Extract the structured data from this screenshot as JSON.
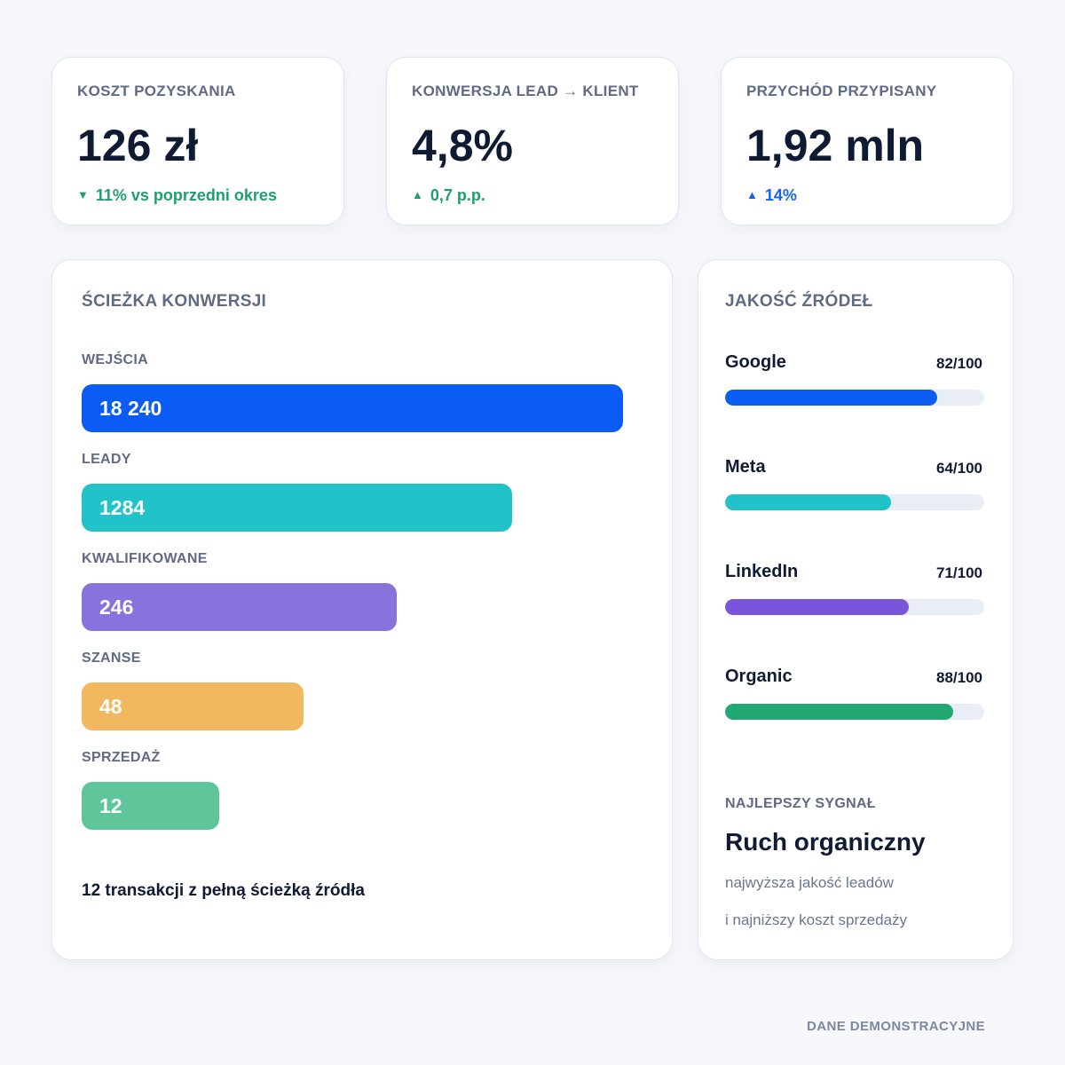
{
  "kpis": [
    {
      "label": "KOSZT POZYSKANIA",
      "value": "126 zł",
      "delta_arrow": "▼",
      "delta": "11% vs poprzedni okres",
      "delta_color": "#1f9e6e"
    },
    {
      "label": "KONWERSJA LEAD → KLIENT",
      "value": "4,8%",
      "delta_arrow": "▲",
      "delta": "0,7 p.p.",
      "delta_color": "#1f9e6e"
    },
    {
      "label": "PRZYCHÓD PRZYPISANY",
      "value": "1,92 mln",
      "delta_arrow": "▲",
      "delta": "14%",
      "delta_color": "#1663f0"
    }
  ],
  "funnel": {
    "title": "ŚCIEŻKA KONWERSJI",
    "stages": [
      {
        "label": "WEJŚCIA",
        "value": "18 240",
        "fill_fraction": 1.0,
        "color": "#0a5cf5"
      },
      {
        "label": "LEADY",
        "value": "1284",
        "fill_fraction": 0.795,
        "color": "#22c3c8"
      },
      {
        "label": "KWALIFIKOWANE",
        "value": "246",
        "fill_fraction": 0.582,
        "color": "#8a72dd"
      },
      {
        "label": "SZANSE",
        "value": "48",
        "fill_fraction": 0.41,
        "color": "#f2b85f"
      },
      {
        "label": "SPRZEDAŻ",
        "value": "12",
        "fill_fraction": 0.254,
        "color": "#5ec69a"
      }
    ],
    "footer": "12 transakcji z pełną ścieżką źródła"
  },
  "sources": {
    "title": "JAKOŚĆ ŹRÓDEŁ",
    "items": [
      {
        "name": "Google",
        "score_label": "82/100",
        "score": 82,
        "color": "#0a5cf5"
      },
      {
        "name": "Meta",
        "score_label": "64/100",
        "score": 64,
        "color": "#22c3c8"
      },
      {
        "name": "LinkedIn",
        "score_label": "71/100",
        "score": 71,
        "color": "#7b55d9"
      },
      {
        "name": "Organic",
        "score_label": "88/100",
        "score": 88,
        "color": "#22a873"
      }
    ],
    "signal_label": "NAJLEPSZY SYGNAŁ",
    "signal_value": "Ruch organiczny",
    "signal_desc": [
      "najwyższa jakość leadów",
      "i najniższy koszt sprzedaży"
    ]
  },
  "footer_note": "DANE DEMONSTRACYJNE"
}
